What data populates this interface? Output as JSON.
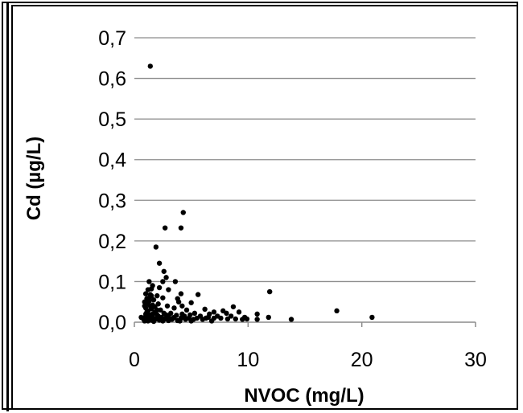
{
  "chart_data": {
    "type": "scatter",
    "title": "",
    "xlabel": "NVOC (mg/L)",
    "ylabel": "Cd (µg/L)",
    "xlim": [
      0,
      30
    ],
    "ylim": [
      0,
      0.7
    ],
    "x_ticks": [
      "0",
      "10",
      "20",
      "30"
    ],
    "y_ticks": [
      "0,0",
      "0,1",
      "0,2",
      "0,3",
      "0,4",
      "0,5",
      "0,6",
      "0,7"
    ],
    "grid": "horizontal",
    "legend": "none",
    "colors": {
      "point": "#000000",
      "gridline": "#8c8c8c",
      "axis": "#8c8c8c"
    },
    "points": [
      [
        1.4,
        0.63
      ],
      [
        4.3,
        0.27
      ],
      [
        2.7,
        0.232
      ],
      [
        4.1,
        0.232
      ],
      [
        1.9,
        0.185
      ],
      [
        2.2,
        0.145
      ],
      [
        2.6,
        0.125
      ],
      [
        2.8,
        0.11
      ],
      [
        3.6,
        0.1
      ],
      [
        2.5,
        0.1
      ],
      [
        1.3,
        0.1
      ],
      [
        1.6,
        0.09
      ],
      [
        2.2,
        0.085
      ],
      [
        1.2,
        0.08
      ],
      [
        1.5,
        0.082
      ],
      [
        3.0,
        0.08
      ],
      [
        4.1,
        0.07
      ],
      [
        5.6,
        0.068
      ],
      [
        11.9,
        0.075
      ],
      [
        1.0,
        0.07
      ],
      [
        1.4,
        0.068
      ],
      [
        2.0,
        0.065
      ],
      [
        2.5,
        0.06
      ],
      [
        3.8,
        0.058
      ],
      [
        1.1,
        0.058
      ],
      [
        1.7,
        0.055
      ],
      [
        3.9,
        0.05
      ],
      [
        5.0,
        0.048
      ],
      [
        0.9,
        0.05
      ],
      [
        1.3,
        0.052
      ],
      [
        2.1,
        0.045
      ],
      [
        1.6,
        0.042
      ],
      [
        2.9,
        0.04
      ],
      [
        4.2,
        0.04
      ],
      [
        3.5,
        0.035
      ],
      [
        1.0,
        0.035
      ],
      [
        1.5,
        0.033
      ],
      [
        2.3,
        0.03
      ],
      [
        4.6,
        0.03
      ],
      [
        6.2,
        0.032
      ],
      [
        7.0,
        0.025
      ],
      [
        8.7,
        0.038
      ],
      [
        7.8,
        0.028
      ],
      [
        9.2,
        0.025
      ],
      [
        17.8,
        0.028
      ],
      [
        1.2,
        0.028
      ],
      [
        1.8,
        0.025
      ],
      [
        2.6,
        0.022
      ],
      [
        3.2,
        0.022
      ],
      [
        5.3,
        0.022
      ],
      [
        6.6,
        0.02
      ],
      [
        8.1,
        0.022
      ],
      [
        10.8,
        0.02
      ],
      [
        1.0,
        0.02
      ],
      [
        1.4,
        0.018
      ],
      [
        2.0,
        0.018
      ],
      [
        3.0,
        0.015
      ],
      [
        3.7,
        0.017
      ],
      [
        4.4,
        0.015
      ],
      [
        5.8,
        0.015
      ],
      [
        7.3,
        0.015
      ],
      [
        8.5,
        0.015
      ],
      [
        9.7,
        0.012
      ],
      [
        11.8,
        0.012
      ],
      [
        0.6,
        0.012
      ],
      [
        1.1,
        0.012
      ],
      [
        1.6,
        0.012
      ],
      [
        2.4,
        0.012
      ],
      [
        2.9,
        0.01
      ],
      [
        3.4,
        0.01
      ],
      [
        4.1,
        0.01
      ],
      [
        4.8,
        0.01
      ],
      [
        5.5,
        0.01
      ],
      [
        6.3,
        0.01
      ],
      [
        7.0,
        0.01
      ],
      [
        8.9,
        0.008
      ],
      [
        9.5,
        0.007
      ],
      [
        10.8,
        0.007
      ],
      [
        13.8,
        0.007
      ],
      [
        20.9,
        0.012
      ],
      [
        0.8,
        0.008
      ],
      [
        1.3,
        0.008
      ],
      [
        1.9,
        0.008
      ],
      [
        2.7,
        0.008
      ],
      [
        3.3,
        0.007
      ],
      [
        4.5,
        0.007
      ],
      [
        5.2,
        0.007
      ],
      [
        6.0,
        0.007
      ],
      [
        1.0,
        0.005
      ],
      [
        1.5,
        0.005
      ],
      [
        2.2,
        0.005
      ],
      [
        3.0,
        0.004
      ],
      [
        3.8,
        0.004
      ],
      [
        0.9,
        0.003
      ],
      [
        1.2,
        0.003
      ],
      [
        1.7,
        0.002
      ],
      [
        2.5,
        0.003
      ],
      [
        4.0,
        0.003
      ],
      [
        5.0,
        0.003
      ],
      [
        6.8,
        0.003
      ],
      [
        1.4,
        0.04
      ],
      [
        1.2,
        0.045
      ],
      [
        0.9,
        0.04
      ],
      [
        1.8,
        0.038
      ],
      [
        2.0,
        0.03
      ],
      [
        1.1,
        0.025
      ],
      [
        1.3,
        0.06
      ],
      [
        1.5,
        0.065
      ],
      [
        1.0,
        0.015
      ],
      [
        1.6,
        0.02
      ],
      [
        2.1,
        0.015
      ],
      [
        2.8,
        0.018
      ],
      [
        3.5,
        0.012
      ],
      [
        4.2,
        0.02
      ],
      [
        4.9,
        0.018
      ],
      [
        6.5,
        0.012
      ],
      [
        7.6,
        0.01
      ],
      [
        8.2,
        0.008
      ],
      [
        9.9,
        0.008
      ]
    ]
  }
}
